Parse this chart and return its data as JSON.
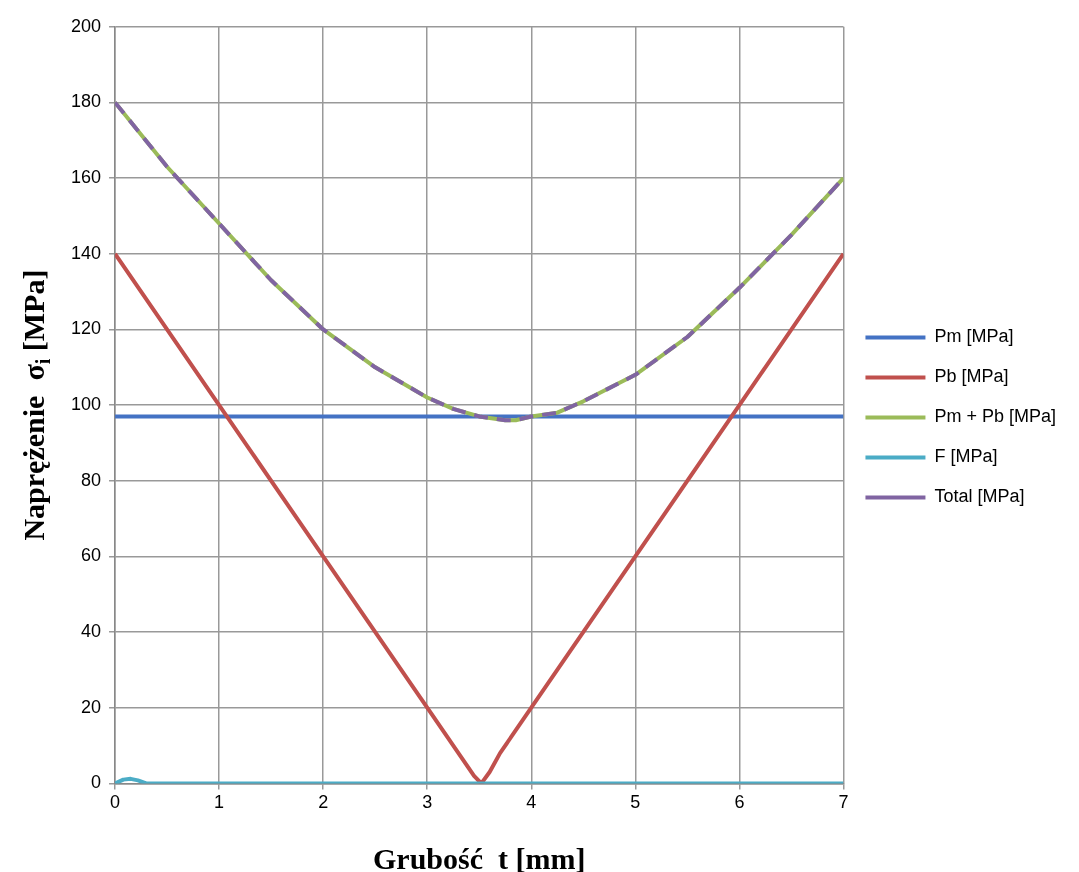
{
  "chart_data": {
    "type": "line",
    "xlabel": "Grubość  t [mm]",
    "ylabel": "Naprężenie  σ$_{i}$ [MPa]",
    "xlim": [
      0,
      7
    ],
    "xticks": [
      0,
      1,
      2,
      3,
      4,
      5,
      6,
      7
    ],
    "ylim": [
      0,
      200
    ],
    "yticks": [
      0,
      20,
      40,
      60,
      80,
      100,
      120,
      140,
      160,
      180,
      200
    ],
    "grid": true,
    "legend": "right",
    "marker": "none",
    "series": [
      {
        "name": "Pm [MPa]",
        "color": "#4472c4",
        "x": [
          0,
          7
        ],
        "values": [
          97,
          97
        ]
      },
      {
        "name": "Pb [MPa]",
        "color": "#c0504d",
        "x": [
          0,
          1,
          2,
          3,
          3.3,
          3.45,
          3.52,
          3.6,
          3.7,
          4,
          5,
          6,
          7
        ],
        "values": [
          140,
          100,
          60,
          20,
          8,
          2,
          0,
          3,
          8,
          20,
          60,
          100,
          140
        ]
      },
      {
        "name": "Pm + Pb [MPa]",
        "color": "#9bbb59",
        "x": [
          0,
          0.5,
          1,
          1.5,
          2,
          2.5,
          3,
          3.25,
          3.5,
          3.75,
          3.85,
          4,
          4.25,
          4.5,
          5,
          5.5,
          6,
          6.5,
          7
        ],
        "values": [
          180,
          163,
          148,
          133,
          120,
          110,
          102,
          99,
          97,
          96,
          96,
          97,
          98,
          101,
          108,
          118,
          131,
          145,
          160
        ]
      },
      {
        "name": "F [MPa]",
        "color": "#4bacc6",
        "x": [
          0,
          0.08,
          0.15,
          0.22,
          0.3,
          1,
          7
        ],
        "values": [
          0,
          1,
          1.2,
          0.8,
          0,
          0,
          0
        ]
      },
      {
        "name": "Total [MPa]",
        "color": "#8064a2",
        "line_style": "dashed",
        "x": [
          0,
          0.5,
          1,
          1.5,
          2,
          2.5,
          3,
          3.25,
          3.5,
          3.75,
          3.85,
          4,
          4.25,
          4.5,
          5,
          5.5,
          6,
          6.5,
          7
        ],
        "values": [
          180,
          163,
          148,
          133,
          120,
          110,
          102,
          99,
          97,
          96,
          96,
          97,
          98,
          101,
          108,
          118,
          131,
          145,
          160
        ]
      }
    ]
  }
}
